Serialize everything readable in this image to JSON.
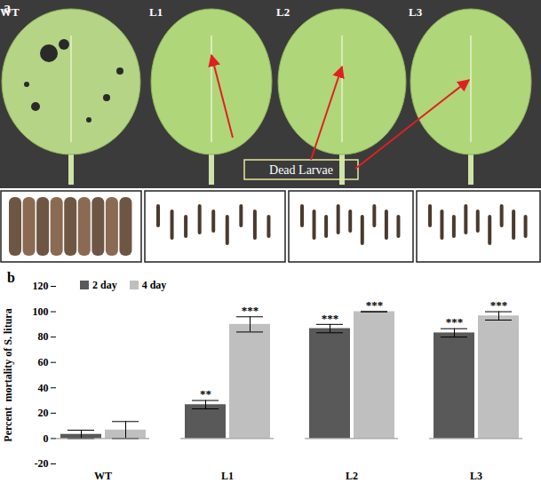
{
  "panel_a": {
    "label": "a",
    "leaves": [
      "WT",
      "L1",
      "L2",
      "L3"
    ],
    "annotation": "Dead Larvae"
  },
  "chart_data": {
    "type": "bar",
    "panel_label": "b",
    "y_label": "Percent  mortality of S. litura",
    "categories": [
      "WT",
      "L1",
      "L2",
      "L3"
    ],
    "series": [
      {
        "name": "2 day",
        "color": "#595959",
        "values": [
          3.3,
          26.7,
          86.7,
          83.3
        ],
        "errors": [
          3.3,
          3.3,
          3.3,
          3.3
        ],
        "annotations": [
          null,
          "**",
          "***",
          "***"
        ]
      },
      {
        "name": "4 day",
        "color": "#bfbfbf",
        "values": [
          6.7,
          90,
          100,
          96.7
        ],
        "errors": [
          6.7,
          6,
          0,
          3.3
        ],
        "annotations": [
          null,
          "***",
          "***",
          "***"
        ]
      }
    ],
    "ylim": [
      -20,
      120
    ],
    "yticks": [
      -20,
      0,
      20,
      40,
      60,
      80,
      100,
      120
    ],
    "grid": false,
    "legend": "top-left"
  }
}
